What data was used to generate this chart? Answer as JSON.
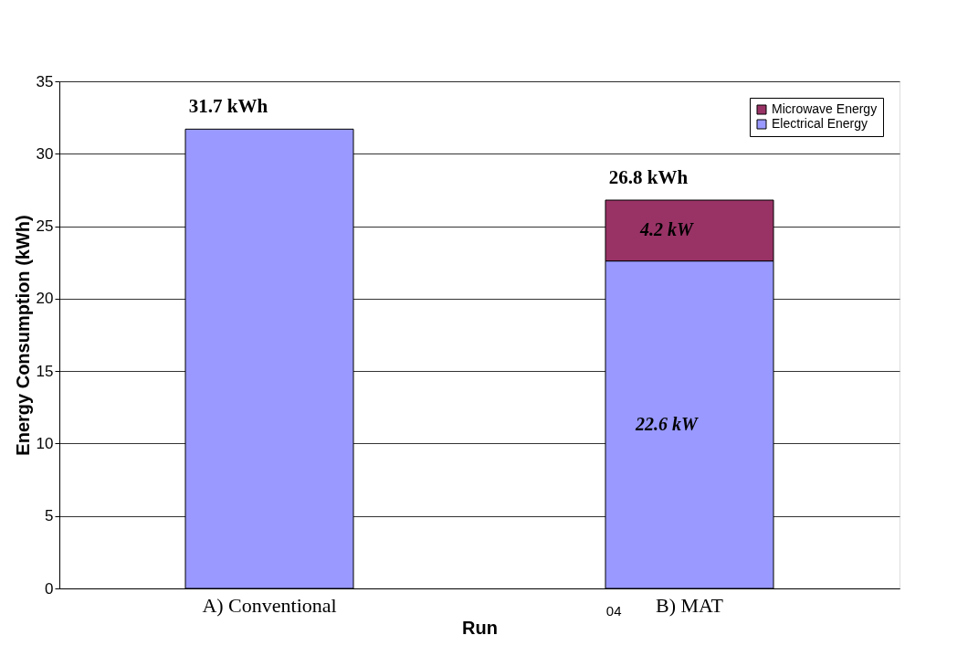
{
  "chart_data": {
    "type": "bar",
    "stacked": true,
    "xlabel": "Run",
    "ylabel": "Energy Consumption (kWh)",
    "categories": [
      "A) Conventional",
      "B) MAT"
    ],
    "series": [
      {
        "name": "Electrical Energy",
        "color": "#9999ff",
        "values": [
          31.7,
          22.6
        ],
        "value_labels": [
          null,
          "22.6 kW"
        ]
      },
      {
        "name": "Microwave Energy",
        "color": "#993366",
        "values": [
          null,
          4.2
        ],
        "value_labels": [
          null,
          "4.2 kW"
        ]
      }
    ],
    "totals": [
      "31.7 kWh",
      "26.8 kWh"
    ],
    "annotations": [
      "04"
    ],
    "ylim": [
      0,
      35
    ],
    "yticks": [
      0,
      5,
      10,
      15,
      20,
      25,
      30,
      35
    ],
    "grid": "y",
    "legend": "top right"
  }
}
